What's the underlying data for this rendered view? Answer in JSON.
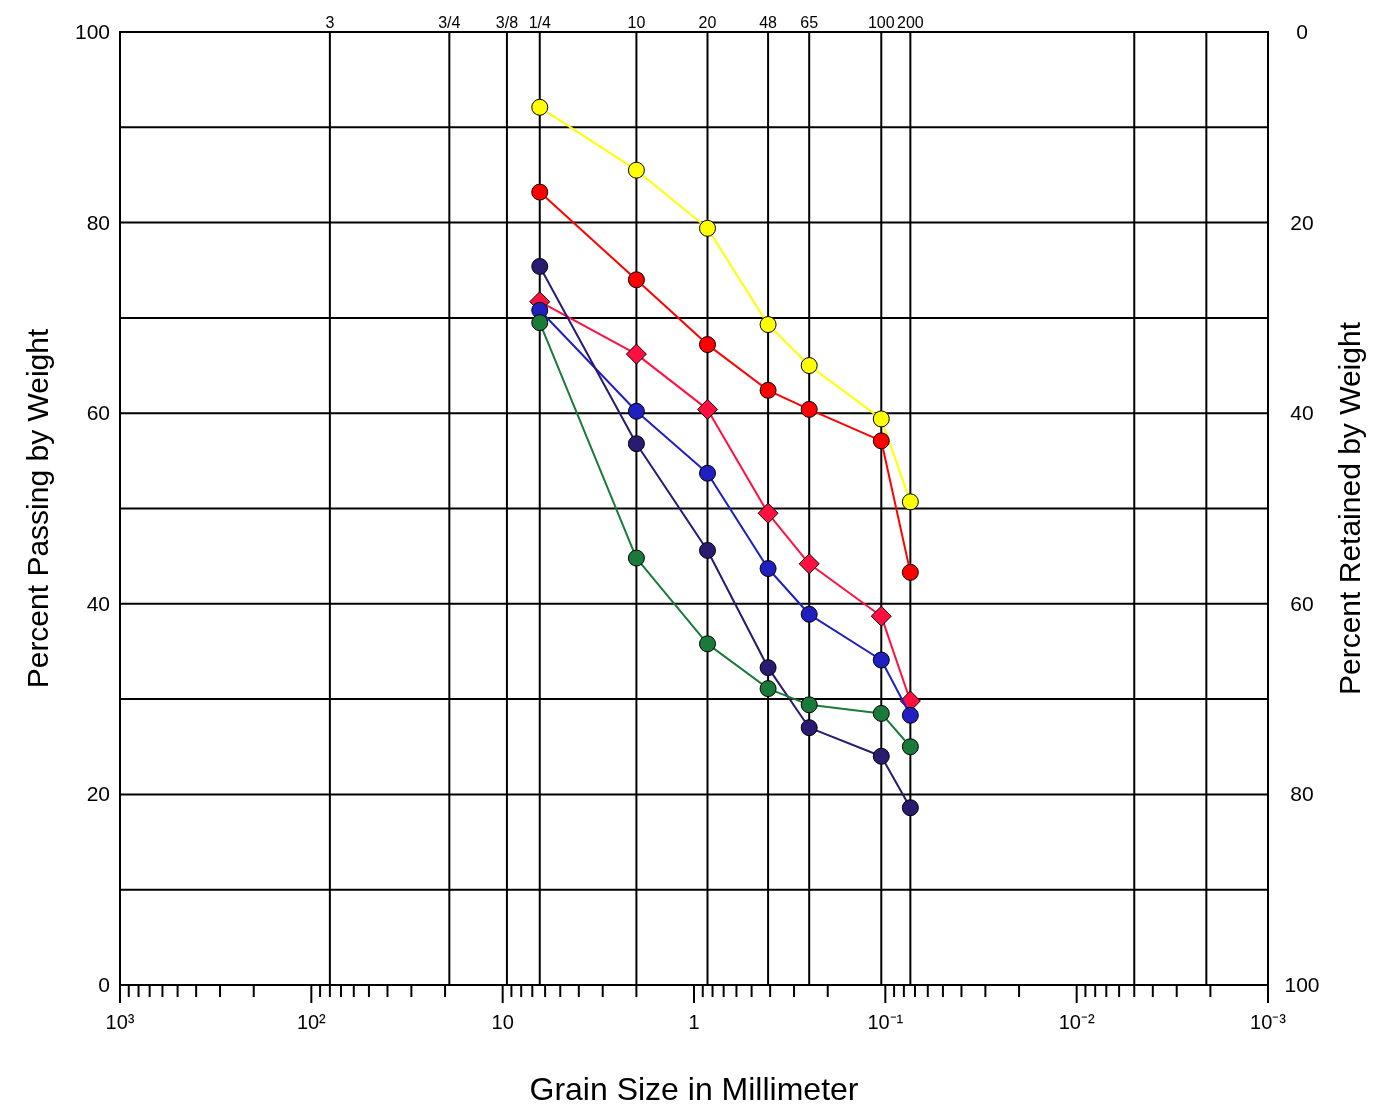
{
  "chart_data": {
    "type": "line",
    "xlabel": "Grain Size in Millimeter",
    "ylabel": "Percent Passing by Weight",
    "y2label": "Percent Retained by Weight",
    "log": "x",
    "grid": "y",
    "marker": "circle",
    "line_style": "solid",
    "xlim": [
      1000,
      0.001
    ],
    "xticks": [
      {
        "value": 1000,
        "label": "10³"
      },
      {
        "value": 900,
        "label": null
      },
      {
        "value": 800,
        "label": null
      },
      {
        "value": 700,
        "label": null
      },
      {
        "value": 600,
        "label": null
      },
      {
        "value": 500,
        "label": null
      },
      {
        "value": 400,
        "label": null
      },
      {
        "value": 300,
        "label": null
      },
      {
        "value": 200,
        "label": null
      },
      {
        "value": 100,
        "label": "10²"
      },
      {
        "value": 90,
        "label": null
      },
      {
        "value": 80,
        "label": null
      },
      {
        "value": 70,
        "label": null
      },
      {
        "value": 60,
        "label": null
      },
      {
        "value": 50,
        "label": null
      },
      {
        "value": 40,
        "label": null
      },
      {
        "value": 30,
        "label": null
      },
      {
        "value": 20,
        "label": null
      },
      {
        "value": 10,
        "label": "10"
      },
      {
        "value": 9,
        "label": null
      },
      {
        "value": 8,
        "label": null
      },
      {
        "value": 7,
        "label": null
      },
      {
        "value": 6,
        "label": null
      },
      {
        "value": 5,
        "label": null
      },
      {
        "value": 4,
        "label": null
      },
      {
        "value": 3,
        "label": null
      },
      {
        "value": 2,
        "label": null
      },
      {
        "value": 1,
        "label": "1"
      },
      {
        "value": 0.9,
        "label": null
      },
      {
        "value": 0.8,
        "label": null
      },
      {
        "value": 0.7,
        "label": null
      },
      {
        "value": 0.6,
        "label": null
      },
      {
        "value": 0.5,
        "label": null
      },
      {
        "value": 0.4,
        "label": null
      },
      {
        "value": 0.3,
        "label": null
      },
      {
        "value": 0.2,
        "label": null
      },
      {
        "value": 0.1,
        "label": "10⁻¹"
      },
      {
        "value": 0.09,
        "label": null
      },
      {
        "value": 0.08,
        "label": null
      },
      {
        "value": 0.07,
        "label": null
      },
      {
        "value": 0.06,
        "label": null
      },
      {
        "value": 0.05,
        "label": null
      },
      {
        "value": 0.04,
        "label": null
      },
      {
        "value": 0.03,
        "label": null
      },
      {
        "value": 0.02,
        "label": null
      },
      {
        "value": 0.01,
        "label": "10⁻²"
      },
      {
        "value": 0.009,
        "label": null
      },
      {
        "value": 0.008,
        "label": null
      },
      {
        "value": 0.007,
        "label": null
      },
      {
        "value": 0.006,
        "label": null
      },
      {
        "value": 0.005,
        "label": null
      },
      {
        "value": 0.004,
        "label": null
      },
      {
        "value": 0.003,
        "label": null
      },
      {
        "value": 0.002,
        "label": null
      },
      {
        "value": 0.001,
        "label": "10⁻³"
      }
    ],
    "ref_lines": [
      {
        "axis": "x",
        "value": 80
      },
      {
        "axis": "x",
        "value": 19
      },
      {
        "axis": "x",
        "value": 9.5
      },
      {
        "axis": "x",
        "value": 6.4
      },
      {
        "axis": "x",
        "value": 2
      },
      {
        "axis": "x",
        "value": 0.85
      },
      {
        "axis": "x",
        "value": 0.41
      },
      {
        "axis": "x",
        "value": 0.25
      },
      {
        "axis": "x",
        "value": 0.105
      },
      {
        "axis": "x",
        "value": 0.074
      },
      {
        "axis": "x",
        "value": 0.005
      },
      {
        "axis": "x",
        "value": 0.0021
      }
    ],
    "annotations": [
      {
        "text": "3",
        "x": 80,
        "y": 100
      },
      {
        "text": "3/4",
        "x": 19,
        "y": 100
      },
      {
        "text": "3/8",
        "x": 9.5,
        "y": 100
      },
      {
        "text": "1/4",
        "x": 6.4,
        "y": 100
      },
      {
        "text": "10",
        "x": 2,
        "y": 100
      },
      {
        "text": "20",
        "x": 0.85,
        "y": 100
      },
      {
        "text": "48",
        "x": 0.41,
        "y": 100
      },
      {
        "text": "65",
        "x": 0.25,
        "y": 100
      },
      {
        "text": "100",
        "x": 0.105,
        "y": 100
      },
      {
        "text": "200",
        "x": 0.074,
        "y": 100
      }
    ],
    "ylim": [
      0,
      100
    ],
    "yticks": [
      0,
      {
        "value": 10,
        "label": null
      },
      20,
      {
        "value": 30,
        "label": null
      },
      40,
      {
        "value": 50,
        "label": null
      },
      60,
      {
        "value": 70,
        "label": null
      },
      80,
      {
        "value": 90,
        "label": null
      },
      100
    ],
    "y2lim": [
      100,
      0
    ],
    "y2ticks": [
      0,
      20,
      40,
      60,
      80,
      100
    ],
    "x": [
      6.4,
      2,
      0.85,
      0.41,
      0.25,
      0.105,
      0.074
    ],
    "series": [
      {
        "color": "#ffff00",
        "values": [
          92.1,
          85.5,
          79.4,
          69.3,
          65.0,
          59.4,
          50.7
        ]
      },
      {
        "color": "#ff0000",
        "values": [
          83.2,
          74.0,
          67.2,
          62.4,
          60.4,
          57.1,
          43.3
        ]
      },
      {
        "color": "#ff1040",
        "marker": "diamond",
        "values": [
          71.7,
          66.2,
          60.4,
          49.5,
          44.2,
          38.7,
          29.8
        ]
      },
      {
        "color": "#2020c0",
        "values": [
          70.8,
          60.2,
          53.7,
          43.7,
          38.9,
          34.1,
          28.3
        ]
      },
      {
        "color": "#2a1a70",
        "values": [
          75.4,
          56.8,
          45.6,
          33.3,
          27.0,
          24.0,
          18.6
        ]
      },
      {
        "color": "#1a7a3a",
        "values": [
          69.5,
          44.8,
          35.8,
          31.1,
          29.4,
          28.5,
          25.0
        ]
      }
    ]
  }
}
